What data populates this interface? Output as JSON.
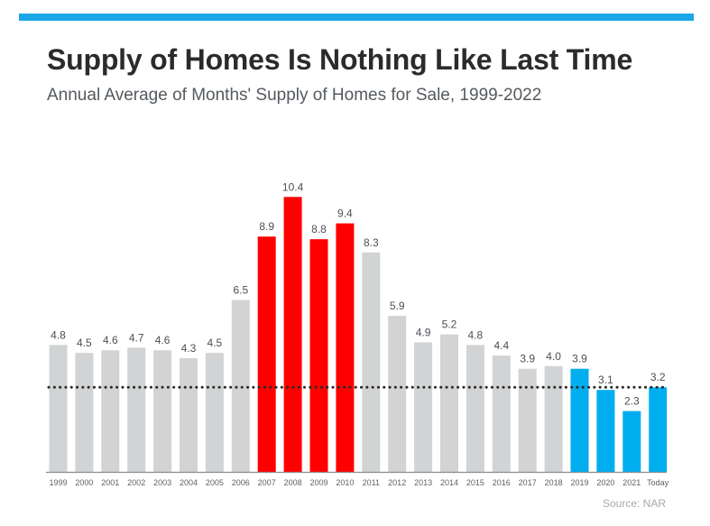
{
  "header": {
    "title": "Supply of Homes Is Nothing Like Last Time",
    "subtitle": "Annual Average of Months' Supply of Homes for Sale, 1999-2022",
    "accent_color": "#1aa7e8"
  },
  "footer": {
    "source": "Source: NAR"
  },
  "chart_data": {
    "type": "bar",
    "title": "Supply of Homes Is Nothing Like Last Time",
    "subtitle": "Annual Average of Months' Supply of Homes for Sale, 1999-2022",
    "categories": [
      "1999",
      "2000",
      "2001",
      "2002",
      "2003",
      "2004",
      "2005",
      "2006",
      "2007",
      "2008",
      "2009",
      "2010",
      "2011",
      "2012",
      "2013",
      "2014",
      "2015",
      "2016",
      "2017",
      "2018",
      "2019",
      "2020",
      "2021",
      "Today"
    ],
    "values": [
      4.8,
      4.5,
      4.6,
      4.7,
      4.6,
      4.3,
      4.5,
      6.5,
      8.9,
      10.4,
      8.8,
      9.4,
      8.3,
      5.9,
      4.9,
      5.2,
      4.8,
      4.4,
      3.9,
      4.0,
      3.9,
      3.1,
      2.3,
      3.2
    ],
    "value_labels": [
      "4.8",
      "4.5",
      "4.6",
      "4.7",
      "4.6",
      "4.3",
      "4.5",
      "6.5",
      "8.9",
      "10.4",
      "8.8",
      "9.4",
      "8.3",
      "5.9",
      "4.9",
      "5.2",
      "4.8",
      "4.4",
      "3.9",
      "4.0",
      "3.9",
      "3.1",
      "2.3",
      "3.2"
    ],
    "bar_groups": [
      "gray",
      "gray",
      "gray",
      "gray",
      "gray",
      "gray",
      "gray",
      "gray",
      "red",
      "red",
      "red",
      "red",
      "gray",
      "gray",
      "gray",
      "gray",
      "gray",
      "gray",
      "gray",
      "gray",
      "blue",
      "blue",
      "blue",
      "blue"
    ],
    "colors": {
      "gray": "#d1d3d4",
      "red": "#ff0000",
      "blue": "#00aeef",
      "reference_line": "#2b2b2b",
      "baseline": "#8a8d90"
    },
    "reference_line": {
      "value": 3.2,
      "style": "dotted"
    },
    "ylim": [
      0,
      11.5
    ],
    "xlabel": "",
    "ylabel": "",
    "grid": false,
    "legend": "none"
  }
}
